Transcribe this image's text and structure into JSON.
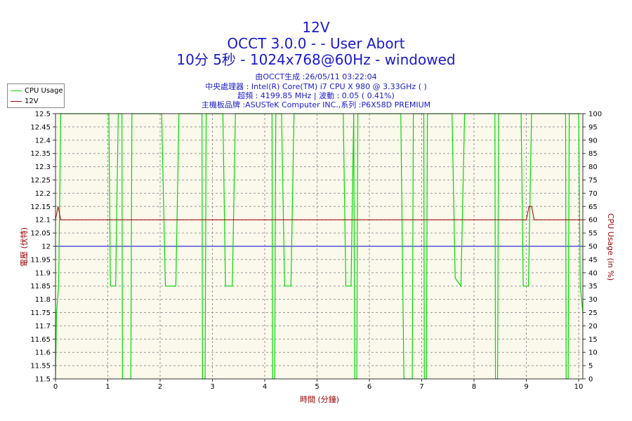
{
  "header": {
    "title": "12V",
    "subtitle": "OCCT 3.0.0 -  - User Abort",
    "run_info": "10分 5秒 - 1024x768@60Hz - windowed",
    "info_lines": [
      "由OCCT生成 :26/05/11 03:22:04",
      "中央處理器 : Intel(R) Core(TM) i7 CPU X 980 @ 3.33GHz ( )",
      "超頻 : 4199.85 MHz | 波動 : 0.05 ( 0.41%)",
      "主機板品牌 :ASUSTeK Computer INC.,系列 :P6X58D PREMIUM"
    ]
  },
  "colors": {
    "cpu_usage": "#00dd00",
    "voltage": "#990000",
    "reference": "#0000cc",
    "plot_bg": "#fbf8ec",
    "grid": "#999999",
    "title_text": "#1a1acd",
    "axis_label": "#990000"
  },
  "chart_data": {
    "type": "line",
    "xlabel": "時間 (分鐘)",
    "ylabel_left": "電壓 (伏特)",
    "ylabel_right": "CPU Usage (in %)",
    "xlim": [
      0,
      10.08
    ],
    "ylim_left": [
      11.5,
      12.5
    ],
    "ylim_right": [
      0,
      100
    ],
    "x_ticks": [
      0,
      1,
      2,
      3,
      4,
      5,
      6,
      7,
      8,
      9,
      10
    ],
    "y_left_ticks": [
      "11.5",
      "11.55",
      "11.6",
      "11.65",
      "11.7",
      "11.75",
      "11.8",
      "11.85",
      "11.9",
      "11.95",
      "12",
      "12.05",
      "12.1",
      "12.15",
      "12.2",
      "12.25",
      "12.3",
      "12.35",
      "12.4",
      "12.45",
      "12.5"
    ],
    "y_right_ticks": [
      0,
      5,
      10,
      15,
      20,
      25,
      30,
      35,
      40,
      45,
      50,
      55,
      60,
      65,
      70,
      75,
      80,
      85,
      90,
      95,
      100
    ],
    "grid": true,
    "legend_position": "top-left",
    "reference_line": {
      "value": 12.0
    },
    "series": [
      {
        "name": "CPU Usage",
        "axis": "right",
        "points": [
          [
            0,
            0
          ],
          [
            0.02,
            25
          ],
          [
            0.06,
            35
          ],
          [
            0.1,
            100
          ],
          [
            1.02,
            100
          ],
          [
            1.05,
            35
          ],
          [
            1.15,
            35
          ],
          [
            1.2,
            100
          ],
          [
            1.27,
            100
          ],
          [
            1.28,
            0
          ],
          [
            1.44,
            0
          ],
          [
            1.46,
            100
          ],
          [
            2.03,
            100
          ],
          [
            2.1,
            35
          ],
          [
            2.3,
            35
          ],
          [
            2.36,
            100
          ],
          [
            2.8,
            100
          ],
          [
            2.81,
            0
          ],
          [
            2.86,
            0
          ],
          [
            2.88,
            100
          ],
          [
            3.2,
            100
          ],
          [
            3.25,
            35
          ],
          [
            3.38,
            35
          ],
          [
            3.44,
            100
          ],
          [
            4.14,
            100
          ],
          [
            4.15,
            0
          ],
          [
            4.19,
            0
          ],
          [
            4.21,
            100
          ],
          [
            4.32,
            100
          ],
          [
            4.38,
            35
          ],
          [
            4.5,
            35
          ],
          [
            4.56,
            100
          ],
          [
            5.5,
            100
          ],
          [
            5.55,
            35
          ],
          [
            5.65,
            35
          ],
          [
            5.7,
            100
          ],
          [
            5.72,
            0
          ],
          [
            5.76,
            0
          ],
          [
            5.78,
            100
          ],
          [
            6.6,
            100
          ],
          [
            6.66,
            0
          ],
          [
            6.82,
            0
          ],
          [
            6.84,
            100
          ],
          [
            7.04,
            100
          ],
          [
            7.05,
            0
          ],
          [
            7.09,
            0
          ],
          [
            7.11,
            100
          ],
          [
            7.58,
            100
          ],
          [
            7.64,
            38
          ],
          [
            7.75,
            35
          ],
          [
            7.82,
            100
          ],
          [
            8.4,
            100
          ],
          [
            8.41,
            0
          ],
          [
            8.45,
            0
          ],
          [
            8.47,
            100
          ],
          [
            8.9,
            100
          ],
          [
            8.94,
            35
          ],
          [
            9.04,
            35
          ],
          [
            9.1,
            100
          ],
          [
            9.75,
            100
          ],
          [
            9.76,
            0
          ],
          [
            9.8,
            0
          ],
          [
            9.82,
            100
          ],
          [
            10.0,
            100
          ],
          [
            10.03,
            35
          ],
          [
            10.08,
            25
          ]
        ]
      },
      {
        "name": "12V",
        "axis": "left",
        "points": [
          [
            0,
            12.1
          ],
          [
            0.05,
            12.15
          ],
          [
            0.1,
            12.1
          ],
          [
            9.0,
            12.1
          ],
          [
            9.05,
            12.15
          ],
          [
            9.1,
            12.15
          ],
          [
            9.15,
            12.1
          ],
          [
            10.08,
            12.1
          ]
        ]
      }
    ]
  }
}
